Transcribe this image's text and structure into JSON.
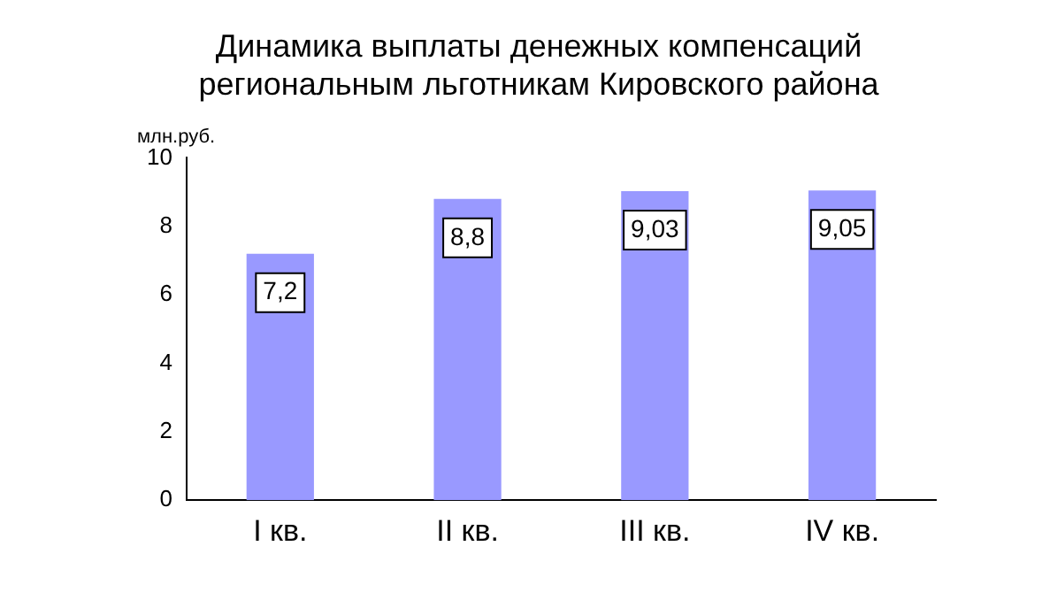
{
  "chart_data": {
    "type": "bar",
    "title": "Динамика выплаты денежных компенсаций региональным льготникам Кировского района",
    "ylabel": "млн.руб.",
    "categories": [
      "I кв.",
      "II кв.",
      "III кв.",
      "IV кв."
    ],
    "values": [
      7.2,
      8.8,
      9.03,
      9.05
    ],
    "value_labels": [
      "7,2",
      "8,8",
      "9,03",
      "9,05"
    ],
    "color": "#9999ff",
    "ylim": [
      0,
      10
    ],
    "yticks": [
      0,
      2,
      4,
      6,
      8,
      10
    ],
    "grid": false,
    "legend": false
  }
}
